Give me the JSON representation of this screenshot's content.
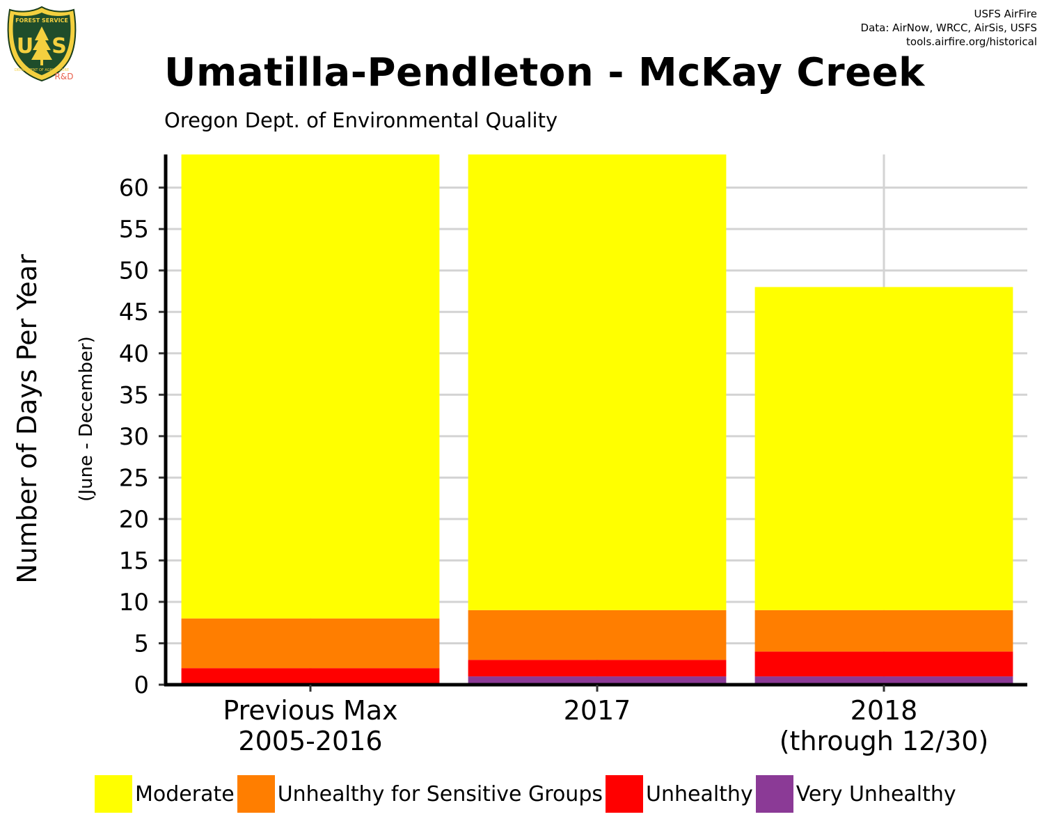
{
  "credits": [
    "USFS AirFire",
    "Data: AirNow, WRCC, AirSis, USFS",
    "tools.airfire.org/historical"
  ],
  "logo": {
    "icon": "usfs-shield-logo",
    "top_text": "FOREST SERVICE",
    "letters_left": "U",
    "letters_right": "S",
    "bottom_text": "DEPARTMENT OF AGRICULTURE",
    "rd_label": "R&D"
  },
  "title": "Umatilla-Pendleton - McKay Creek",
  "subtitle": "Oregon Dept. of Environmental Quality",
  "chart_data": {
    "type": "bar",
    "stacked": true,
    "categories": [
      [
        "Previous Max",
        "2005-2016"
      ],
      [
        "2017"
      ],
      [
        "2018",
        "(through 12/30)"
      ]
    ],
    "ylabel": "Number of Days Per Year",
    "ylabel_sub": "(June - December)",
    "ylim": [
      0,
      64
    ],
    "yticks": [
      0,
      5,
      10,
      15,
      20,
      25,
      30,
      35,
      40,
      45,
      50,
      55,
      60
    ],
    "grid": true,
    "legend_position": "bottom",
    "series": [
      {
        "name": "Very Unhealthy",
        "color": "#8B3A96",
        "values": [
          0,
          1,
          1
        ]
      },
      {
        "name": "Unhealthy",
        "color": "#FF0000",
        "values": [
          2,
          2,
          3
        ]
      },
      {
        "name": "Unhealthy for Sensitive Groups",
        "color": "#FF7E00",
        "values": [
          6,
          6,
          5
        ]
      },
      {
        "name": "Moderate",
        "color": "#FFFF00",
        "values": [
          56,
          55,
          39
        ]
      }
    ],
    "legend_order": [
      "Moderate",
      "Unhealthy for Sensitive Groups",
      "Unhealthy",
      "Very Unhealthy"
    ]
  }
}
